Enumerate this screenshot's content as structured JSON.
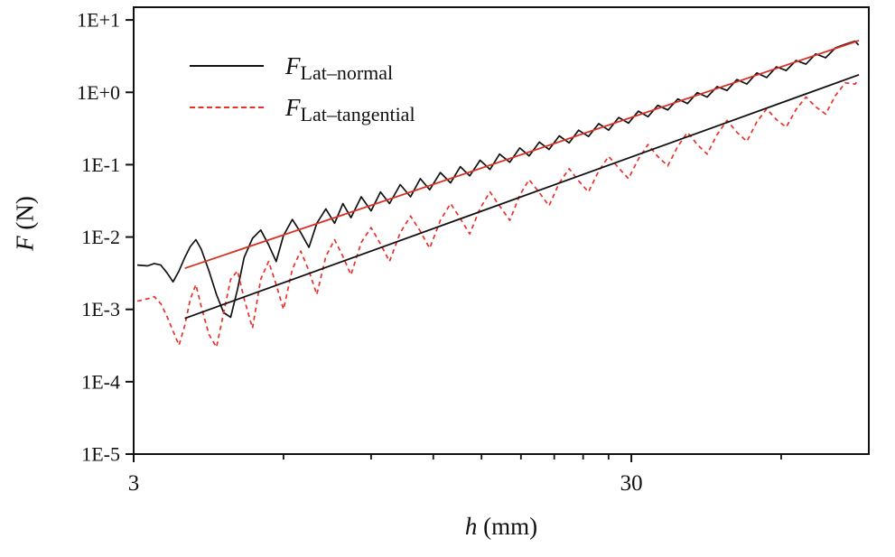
{
  "colors": {
    "normal_series": "#111111",
    "tangential_series": "#e8322b",
    "normal_fit_line": "#d93025",
    "tangential_fit_line": "#111111",
    "axis": "#111111",
    "background": "#ffffff"
  },
  "legend": {
    "items": [
      {
        "symbol": "F",
        "subscript": "Lat–normal",
        "line_style": "solid",
        "line_color": "#111111"
      },
      {
        "symbol": "F",
        "subscript": "Lat–tangential",
        "line_style": "dashed",
        "line_color": "#e8322b"
      }
    ]
  },
  "y_axis": {
    "label_symbol": "F",
    "label_rest": " (N)",
    "tick_labels": [
      "1E+1",
      "1E+0",
      "1E-1",
      "1E-2",
      "1E-3",
      "1E-4",
      "1E-5"
    ],
    "tick_values": [
      10,
      1,
      0.1,
      0.01,
      0.001,
      0.0001,
      1e-05
    ]
  },
  "x_axis": {
    "label_symbol": "h",
    "label_rest": " (mm)",
    "major_ticks": [
      {
        "value": 3,
        "label": "3"
      },
      {
        "value": 30,
        "label": "30"
      }
    ],
    "minor_ticks": [
      6,
      9,
      12,
      15,
      18,
      21,
      24,
      27,
      60
    ]
  },
  "chart_data": {
    "type": "line",
    "x_scale": "log",
    "y_scale": "log",
    "xlim": [
      3,
      90
    ],
    "ylim": [
      1e-05,
      15
    ],
    "xlabel": "h (mm)",
    "ylabel": "F (N)",
    "grid": false,
    "legend_position": "top-left-inside",
    "series": [
      {
        "name": "F_Lat-normal",
        "style": "solid",
        "color": "#111111",
        "points": [
          [
            3.05,
            0.0041
          ],
          [
            3.2,
            0.004
          ],
          [
            3.3,
            0.0043
          ],
          [
            3.4,
            0.0041
          ],
          [
            3.5,
            0.0032
          ],
          [
            3.6,
            0.0024
          ],
          [
            3.7,
            0.0034
          ],
          [
            3.8,
            0.0052
          ],
          [
            3.9,
            0.0074
          ],
          [
            4.0,
            0.0092
          ],
          [
            4.1,
            0.0068
          ],
          [
            4.25,
            0.0034
          ],
          [
            4.4,
            0.0016
          ],
          [
            4.55,
            0.0009
          ],
          [
            4.7,
            0.00078
          ],
          [
            4.85,
            0.0019
          ],
          [
            5.0,
            0.0052
          ],
          [
            5.2,
            0.0096
          ],
          [
            5.4,
            0.0125
          ],
          [
            5.6,
            0.0078
          ],
          [
            5.8,
            0.0046
          ],
          [
            6.0,
            0.0105
          ],
          [
            6.25,
            0.0175
          ],
          [
            6.5,
            0.0115
          ],
          [
            6.75,
            0.0072
          ],
          [
            7.0,
            0.0155
          ],
          [
            7.3,
            0.0245
          ],
          [
            7.6,
            0.0155
          ],
          [
            7.9,
            0.029
          ],
          [
            8.2,
            0.0185
          ],
          [
            8.6,
            0.036
          ],
          [
            9.0,
            0.023
          ],
          [
            9.4,
            0.042
          ],
          [
            9.8,
            0.029
          ],
          [
            10.3,
            0.053
          ],
          [
            10.8,
            0.036
          ],
          [
            11.3,
            0.064
          ],
          [
            11.8,
            0.045
          ],
          [
            12.4,
            0.078
          ],
          [
            13.0,
            0.056
          ],
          [
            13.6,
            0.094
          ],
          [
            14.2,
            0.07
          ],
          [
            14.9,
            0.115
          ],
          [
            15.6,
            0.086
          ],
          [
            16.3,
            0.14
          ],
          [
            17.1,
            0.108
          ],
          [
            17.9,
            0.17
          ],
          [
            18.7,
            0.132
          ],
          [
            19.6,
            0.205
          ],
          [
            20.5,
            0.162
          ],
          [
            21.5,
            0.25
          ],
          [
            22.5,
            0.2
          ],
          [
            23.5,
            0.3
          ],
          [
            24.6,
            0.245
          ],
          [
            25.8,
            0.37
          ],
          [
            27.0,
            0.3
          ],
          [
            28.3,
            0.45
          ],
          [
            29.6,
            0.375
          ],
          [
            31.0,
            0.55
          ],
          [
            32.4,
            0.46
          ],
          [
            33.9,
            0.66
          ],
          [
            35.5,
            0.57
          ],
          [
            37.2,
            0.81
          ],
          [
            38.9,
            0.7
          ],
          [
            40.7,
            0.99
          ],
          [
            42.6,
            0.86
          ],
          [
            44.6,
            1.2
          ],
          [
            46.7,
            1.06
          ],
          [
            48.9,
            1.5
          ],
          [
            51.2,
            1.3
          ],
          [
            53.6,
            1.85
          ],
          [
            56.1,
            1.6
          ],
          [
            58.7,
            2.25
          ],
          [
            61.4,
            2.0
          ],
          [
            64.3,
            2.75
          ],
          [
            67.3,
            2.45
          ],
          [
            70.4,
            3.4
          ],
          [
            73.7,
            3.0
          ],
          [
            77.1,
            4.1
          ],
          [
            80.7,
            4.6
          ],
          [
            84.5,
            5.1
          ],
          [
            85.8,
            4.5
          ]
        ]
      },
      {
        "name": "F_Lat-tangential",
        "style": "dashed",
        "color": "#e8322b",
        "points": [
          [
            3.05,
            0.0013
          ],
          [
            3.2,
            0.0014
          ],
          [
            3.3,
            0.0015
          ],
          [
            3.4,
            0.0012
          ],
          [
            3.5,
            0.0008
          ],
          [
            3.6,
            0.0005
          ],
          [
            3.7,
            0.00032
          ],
          [
            3.8,
            0.0006
          ],
          [
            3.9,
            0.0014
          ],
          [
            4.0,
            0.0022
          ],
          [
            4.1,
            0.0011
          ],
          [
            4.25,
            0.00045
          ],
          [
            4.4,
            0.0003
          ],
          [
            4.55,
            0.0009
          ],
          [
            4.7,
            0.0026
          ],
          [
            4.85,
            0.0034
          ],
          [
            5.0,
            0.0014
          ],
          [
            5.2,
            0.00055
          ],
          [
            5.4,
            0.0026
          ],
          [
            5.6,
            0.0046
          ],
          [
            5.8,
            0.0022
          ],
          [
            6.0,
            0.001
          ],
          [
            6.25,
            0.0036
          ],
          [
            6.5,
            0.0064
          ],
          [
            6.75,
            0.0034
          ],
          [
            7.0,
            0.0016
          ],
          [
            7.3,
            0.0054
          ],
          [
            7.6,
            0.0092
          ],
          [
            7.9,
            0.0054
          ],
          [
            8.2,
            0.003
          ],
          [
            8.6,
            0.0084
          ],
          [
            9.0,
            0.0135
          ],
          [
            9.4,
            0.008
          ],
          [
            9.8,
            0.0046
          ],
          [
            10.3,
            0.0115
          ],
          [
            10.8,
            0.0195
          ],
          [
            11.3,
            0.012
          ],
          [
            11.8,
            0.007
          ],
          [
            12.4,
            0.017
          ],
          [
            13.0,
            0.029
          ],
          [
            13.6,
            0.018
          ],
          [
            14.2,
            0.011
          ],
          [
            14.9,
            0.025
          ],
          [
            15.6,
            0.042
          ],
          [
            16.3,
            0.027
          ],
          [
            17.1,
            0.017
          ],
          [
            17.9,
            0.038
          ],
          [
            18.7,
            0.062
          ],
          [
            19.6,
            0.041
          ],
          [
            20.5,
            0.027
          ],
          [
            21.5,
            0.056
          ],
          [
            22.5,
            0.088
          ],
          [
            23.5,
            0.06
          ],
          [
            24.6,
            0.042
          ],
          [
            25.8,
            0.082
          ],
          [
            27.0,
            0.13
          ],
          [
            28.3,
            0.09
          ],
          [
            29.6,
            0.064
          ],
          [
            31.0,
            0.12
          ],
          [
            32.4,
            0.19
          ],
          [
            33.9,
            0.13
          ],
          [
            35.5,
            0.096
          ],
          [
            37.2,
            0.18
          ],
          [
            38.9,
            0.28
          ],
          [
            40.7,
            0.19
          ],
          [
            42.6,
            0.14
          ],
          [
            44.6,
            0.26
          ],
          [
            46.7,
            0.41
          ],
          [
            48.9,
            0.28
          ],
          [
            51.2,
            0.21
          ],
          [
            53.6,
            0.39
          ],
          [
            56.1,
            0.59
          ],
          [
            58.7,
            0.42
          ],
          [
            61.4,
            0.33
          ],
          [
            64.3,
            0.58
          ],
          [
            67.3,
            0.86
          ],
          [
            70.4,
            0.63
          ],
          [
            73.7,
            0.5
          ],
          [
            77.1,
            0.9
          ],
          [
            80.7,
            1.35
          ],
          [
            84.5,
            1.3
          ],
          [
            85.8,
            1.5
          ]
        ]
      }
    ],
    "fit_lines": [
      {
        "name": "normal-fit",
        "color": "#d93025",
        "points": [
          [
            3.8,
            0.0037
          ],
          [
            86,
            5.2
          ]
        ]
      },
      {
        "name": "tangential-fit",
        "color": "#111111",
        "points": [
          [
            3.8,
            0.00075
          ],
          [
            86,
            1.75
          ]
        ]
      }
    ]
  }
}
